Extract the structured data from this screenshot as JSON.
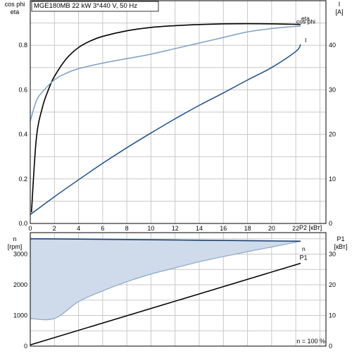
{
  "colors": {
    "eta": "#000000",
    "cos_phi": "#7d9fc4",
    "current": "#1f4e8c",
    "power": "#000000",
    "speed": "#1f3f73",
    "speed_fill": "#cfdbea",
    "grid": "#c8c8c8"
  },
  "chart_data": [
    {
      "type": "line",
      "title": "MGE180MB   22 kW   3*440 V, 50 Hz",
      "xlabel": "P2 [кВт]",
      "ylabel_left": [
        "cos phi",
        "eta"
      ],
      "ylabel_right": [
        "I",
        "[A]"
      ],
      "xlim": [
        0,
        24.5
      ],
      "ylim_left": [
        0,
        1
      ],
      "ylim_right": [
        0,
        50
      ],
      "x_ticks": [
        0,
        2,
        4,
        6,
        8,
        10,
        12,
        14,
        16,
        18,
        20,
        22
      ],
      "y_ticks_left": [
        0,
        0.2,
        0.4,
        0.6,
        0.8
      ],
      "y_ticks_left_labels": [
        "0.0",
        "0.2",
        "0.4",
        "0.6",
        "0.8"
      ],
      "y_ticks_right": [
        0,
        10,
        20,
        30,
        40
      ],
      "grid": true,
      "series": [
        {
          "name": "eta",
          "axis": "left",
          "x": [
            0.1,
            0.5,
            1,
            1.5,
            2,
            3,
            4,
            5,
            6,
            8,
            10,
            12,
            14,
            16,
            18,
            20,
            22,
            22.4
          ],
          "y": [
            0.05,
            0.38,
            0.52,
            0.6,
            0.66,
            0.74,
            0.79,
            0.82,
            0.84,
            0.865,
            0.88,
            0.888,
            0.893,
            0.896,
            0.897,
            0.896,
            0.894,
            0.893
          ]
        },
        {
          "name": "cos phi",
          "axis": "left",
          "x": [
            0,
            0.5,
            1,
            2,
            3,
            4,
            6,
            8,
            10,
            12,
            14,
            16,
            18,
            20,
            22,
            22.4
          ],
          "y": [
            0.46,
            0.55,
            0.59,
            0.645,
            0.675,
            0.695,
            0.72,
            0.74,
            0.76,
            0.785,
            0.81,
            0.835,
            0.86,
            0.875,
            0.885,
            0.885
          ]
        },
        {
          "name": "I",
          "axis": "right",
          "x": [
            0,
            2,
            4,
            6,
            8,
            10,
            12,
            14,
            16,
            18,
            20,
            22,
            22.4
          ],
          "y": [
            2,
            6,
            9.8,
            13.5,
            17,
            20.3,
            23.5,
            26.5,
            29.3,
            32.2,
            35,
            38.6,
            40.2
          ]
        }
      ]
    },
    {
      "type": "area",
      "xlim": [
        0,
        24.5
      ],
      "ylabel_left": [
        "n",
        "[rpm]"
      ],
      "ylabel_right": [
        "P1",
        "[кВт]"
      ],
      "ylim_left": [
        0,
        3700
      ],
      "ylim_right": [
        0,
        37
      ],
      "y_ticks_left": [
        0,
        1000,
        2000,
        3000
      ],
      "y_ticks_right": [
        0,
        10,
        20,
        30
      ],
      "grid": true,
      "annotation": "n = 100 %",
      "series": [
        {
          "name": "n",
          "axis": "left",
          "x": [
            0,
            4,
            8,
            12,
            16,
            20,
            22.4
          ],
          "y": [
            3500,
            3490,
            3475,
            3460,
            3445,
            3430,
            3420
          ]
        },
        {
          "name": "n min",
          "axis": "left",
          "x": [
            0,
            2,
            4,
            6,
            8,
            10,
            12,
            14,
            16,
            18,
            20,
            22.4
          ],
          "y": [
            900,
            900,
            1450,
            1800,
            2100,
            2350,
            2550,
            2750,
            2920,
            3080,
            3230,
            3420
          ]
        },
        {
          "name": "P1",
          "axis": "right",
          "x": [
            0,
            22.4
          ],
          "y": [
            0.4,
            27
          ]
        }
      ]
    }
  ]
}
